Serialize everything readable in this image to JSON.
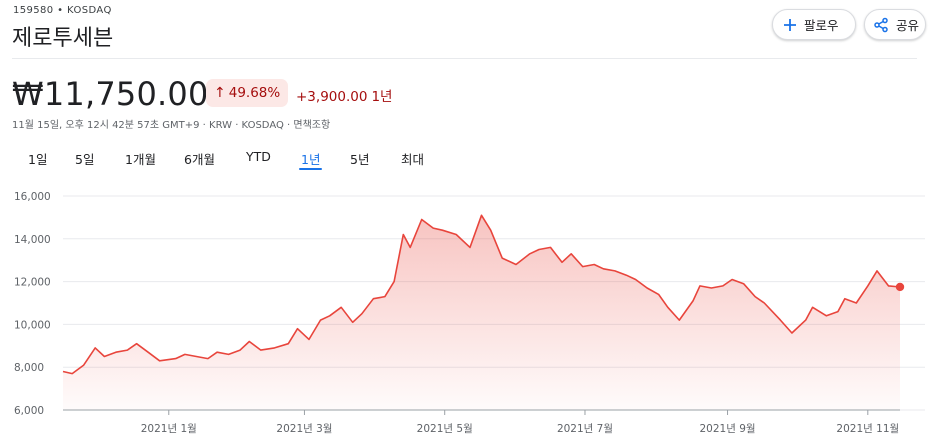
{
  "header": {
    "ticker": "159580 • KOSDAQ",
    "company": "제로투세븐",
    "follow_label": "팔로우",
    "share_label": "공유"
  },
  "quote": {
    "price": "₩11,750.00",
    "pct_change": "49.68%",
    "abs_change": "+3,900.00",
    "change_period": "1년",
    "meta": "11월 15일, 오후 12시 42분 57초 GMT+9 · KRW · KOSDAQ · 면책조항"
  },
  "ranges": [
    "1일",
    "5일",
    "1개월",
    "6개월",
    "YTD",
    "1년",
    "5년",
    "최대"
  ],
  "active_range": "1년",
  "colors": {
    "line": "#e8453c",
    "badge_bg": "#fce8e6",
    "negative_text": "#a50e0e",
    "active_tab": "#1a73e8"
  },
  "chart_data": {
    "type": "area",
    "x_tick_labels": [
      "2021년 1월",
      "2021년 3월",
      "2021년 5월",
      "2021년 7월",
      "2021년 9월",
      "2021년 11월"
    ],
    "y_tick_labels": [
      "16,000",
      "14,000",
      "12,000",
      "10,000",
      "8,000",
      "6,000"
    ],
    "ylim": [
      6000,
      16000
    ],
    "grid": true,
    "xlim": [
      "2020-11-16",
      "2021-11-15"
    ],
    "x_ticks": [
      "2021-01-01",
      "2021-03-01",
      "2021-05-01",
      "2021-07-01",
      "2021-09-01",
      "2021-11-01"
    ],
    "x": [
      "2020-11-16",
      "2020-11-20",
      "2020-11-25",
      "2020-11-30",
      "2020-12-04",
      "2020-12-09",
      "2020-12-14",
      "2020-12-18",
      "2020-12-23",
      "2020-12-28",
      "2021-01-04",
      "2021-01-08",
      "2021-01-13",
      "2021-01-18",
      "2021-01-22",
      "2021-01-27",
      "2021-02-01",
      "2021-02-05",
      "2021-02-10",
      "2021-02-16",
      "2021-02-22",
      "2021-02-26",
      "2021-03-03",
      "2021-03-08",
      "2021-03-12",
      "2021-03-17",
      "2021-03-22",
      "2021-03-26",
      "2021-03-31",
      "2021-04-05",
      "2021-04-09",
      "2021-04-13",
      "2021-04-16",
      "2021-04-21",
      "2021-04-26",
      "2021-04-30",
      "2021-05-06",
      "2021-05-12",
      "2021-05-17",
      "2021-05-21",
      "2021-05-26",
      "2021-06-01",
      "2021-06-07",
      "2021-06-11",
      "2021-06-16",
      "2021-06-21",
      "2021-06-25",
      "2021-06-30",
      "2021-07-05",
      "2021-07-09",
      "2021-07-14",
      "2021-07-19",
      "2021-07-23",
      "2021-07-28",
      "2021-08-02",
      "2021-08-06",
      "2021-08-11",
      "2021-08-17",
      "2021-08-20",
      "2021-08-25",
      "2021-08-30",
      "2021-09-03",
      "2021-09-08",
      "2021-09-13",
      "2021-09-17",
      "2021-09-24",
      "2021-09-29",
      "2021-10-05",
      "2021-10-08",
      "2021-10-14",
      "2021-10-19",
      "2021-10-22",
      "2021-10-27",
      "2021-11-01",
      "2021-11-05",
      "2021-11-10",
      "2021-11-15"
    ],
    "series": [
      {
        "values": [
          7800,
          7700,
          8100,
          8900,
          8500,
          8700,
          8800,
          9100,
          8700,
          8300,
          8400,
          8600,
          8500,
          8400,
          8700,
          8600,
          8800,
          9200,
          8800,
          8900,
          9100,
          9800,
          9300,
          10200,
          10400,
          10800,
          10100,
          10500,
          11200,
          11300,
          12000,
          14200,
          13600,
          14900,
          14500,
          14400,
          14200,
          13600,
          15100,
          14400,
          13100,
          12800,
          13300,
          13500,
          13600,
          12900,
          13300,
          12700,
          12800,
          12600,
          12500,
          12300,
          12100,
          11700,
          11400,
          10800,
          10200,
          11100,
          11800,
          11700,
          11800,
          12100,
          11900,
          11300,
          11000,
          10200,
          9600,
          10200,
          10800,
          10400,
          10600,
          11200,
          11000,
          11800,
          12500,
          11800,
          11750
        ]
      }
    ]
  }
}
